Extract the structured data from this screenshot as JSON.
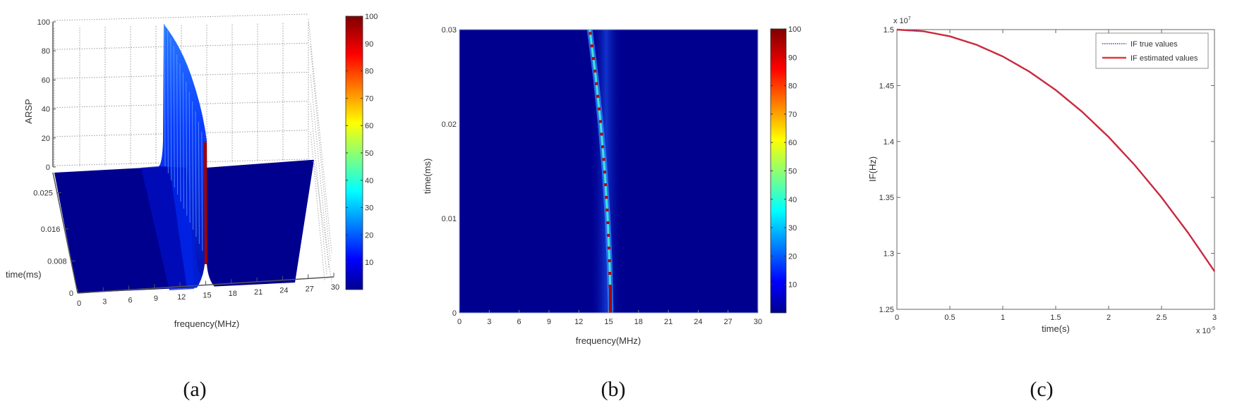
{
  "figure": {
    "captions": [
      "(a)",
      "(b)",
      "(c)"
    ]
  },
  "chart_data": [
    {
      "type": "surface3d",
      "panel": "(a)",
      "title": "",
      "xlabel": "frequency(MHz)",
      "ylabel": "time(ms)",
      "zlabel": "ARSP",
      "x_ticks": [
        "0",
        "3",
        "6",
        "9",
        "12",
        "15",
        "18",
        "21",
        "24",
        "27",
        "30"
      ],
      "y_ticks": [
        "0",
        "0.008",
        "0.016",
        "0.025"
      ],
      "z_ticks": [
        "0",
        "20",
        "40",
        "60",
        "80",
        "100"
      ],
      "xlim": [
        0,
        30
      ],
      "ylim": [
        0,
        0.03
      ],
      "zlim": [
        0,
        100
      ],
      "grid": true,
      "colormap": "jet",
      "colorbar": {
        "ticks": [
          "10",
          "20",
          "30",
          "40",
          "50",
          "60",
          "70",
          "80",
          "90",
          "100"
        ],
        "range": [
          0,
          100
        ]
      },
      "ridge": {
        "description": "Sharp spectral peak following the instantaneous frequency; peak height increases with time",
        "time_ms": [
          0.0,
          0.005,
          0.01,
          0.015,
          0.02,
          0.025,
          0.03
        ],
        "frequency_MHz": [
          15.0,
          14.9,
          14.7,
          14.4,
          14.0,
          13.6,
          13.1
        ],
        "peak_ARSP": [
          18,
          30,
          42,
          55,
          68,
          82,
          100
        ]
      }
    },
    {
      "type": "heatmap",
      "panel": "(b)",
      "title": "",
      "xlabel": "frequency(MHz)",
      "ylabel": "time(ms)",
      "x_ticks": [
        "0",
        "3",
        "6",
        "9",
        "12",
        "15",
        "18",
        "21",
        "24",
        "27",
        "30"
      ],
      "y_ticks": [
        "0",
        "0.01",
        "0.02",
        "0.03"
      ],
      "xlim": [
        0,
        30
      ],
      "ylim": [
        0,
        0.03
      ],
      "colormap": "jet",
      "colorbar": {
        "ticks": [
          "10",
          "20",
          "30",
          "40",
          "50",
          "60",
          "70",
          "80",
          "90",
          "100"
        ],
        "range": [
          0,
          100
        ]
      },
      "ridge": {
        "time_ms": [
          0.0,
          0.005,
          0.01,
          0.015,
          0.02,
          0.025,
          0.03
        ],
        "frequency_MHz": [
          15.2,
          15.1,
          14.9,
          14.6,
          14.2,
          13.7,
          13.1
        ]
      }
    },
    {
      "type": "line",
      "panel": "(c)",
      "title": "",
      "xlabel": "time(s)",
      "ylabel": "IF(Hz)",
      "x_exponent": "x 10",
      "x_exponent_power": "-5",
      "y_exponent": "x 10",
      "y_exponent_power": "7",
      "x_ticks": [
        "0",
        "0.5",
        "1",
        "1.5",
        "2",
        "2.5",
        "3"
      ],
      "y_ticks": [
        "1.25",
        "1.3",
        "1.35",
        "1.4",
        "1.45",
        "1.5"
      ],
      "xlim": [
        0,
        3
      ],
      "ylim": [
        1.25,
        1.5
      ],
      "grid": false,
      "legend_position": "upper right",
      "x": [
        0,
        0.25,
        0.5,
        0.75,
        1.0,
        1.25,
        1.5,
        1.75,
        2.0,
        2.25,
        2.5,
        2.75,
        3.0
      ],
      "series": [
        {
          "name": "IF true values",
          "style": "dotted",
          "color": "#1a1a8c",
          "values": [
            1.5,
            1.4985,
            1.494,
            1.4865,
            1.476,
            1.4625,
            1.446,
            1.4265,
            1.404,
            1.3785,
            1.35,
            1.3185,
            1.284
          ]
        },
        {
          "name": "IF estimated values",
          "style": "solid",
          "color": "#e8343a",
          "values": [
            1.5,
            1.4985,
            1.494,
            1.4865,
            1.476,
            1.4625,
            1.446,
            1.4265,
            1.404,
            1.3785,
            1.35,
            1.3185,
            1.284
          ]
        }
      ]
    }
  ]
}
